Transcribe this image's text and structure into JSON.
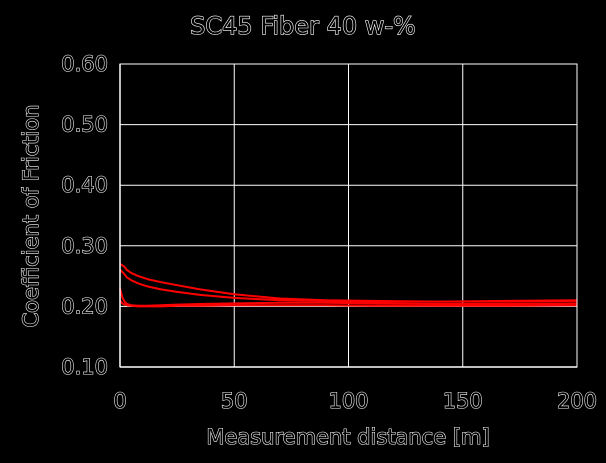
{
  "chart_data": {
    "type": "line",
    "title": "SC45 Fiber 40 w-%",
    "xlabel": "Measurement distance [m]",
    "ylabel": "Coefficient of Friction",
    "xlim": [
      0,
      200
    ],
    "ylim": [
      0.1,
      0.6
    ],
    "x_ticks": [
      "0",
      "50",
      "100",
      "150",
      "200"
    ],
    "y_ticks": [
      "0.10",
      "0.20",
      "0.30",
      "0.40",
      "0.50",
      "0.60"
    ],
    "grid": true,
    "legend": "none",
    "colors": {
      "background": "#000000",
      "plot_area": "#000000",
      "gridlines": "#ffffff",
      "series": "#ff0000"
    },
    "series": [
      {
        "x": [
          0,
          1,
          2,
          3,
          5,
          8,
          12,
          18,
          25,
          35,
          50,
          70,
          90,
          110,
          140,
          170,
          200
        ],
        "values": [
          0.27,
          0.268,
          0.265,
          0.26,
          0.255,
          0.25,
          0.245,
          0.24,
          0.235,
          0.228,
          0.22,
          0.213,
          0.21,
          0.209,
          0.208,
          0.209,
          0.21
        ]
      },
      {
        "x": [
          0,
          1,
          2,
          3,
          5,
          8,
          12,
          18,
          25,
          35,
          50,
          70,
          90,
          110,
          140,
          170,
          200
        ],
        "values": [
          0.26,
          0.257,
          0.253,
          0.248,
          0.243,
          0.238,
          0.233,
          0.228,
          0.224,
          0.219,
          0.214,
          0.21,
          0.209,
          0.208,
          0.208,
          0.208,
          0.209
        ]
      },
      {
        "x": [
          0,
          1,
          2,
          3,
          5,
          8,
          12,
          18,
          25,
          35,
          50,
          70,
          90,
          110,
          140,
          170,
          200
        ],
        "values": [
          0.23,
          0.215,
          0.208,
          0.204,
          0.202,
          0.201,
          0.201,
          0.202,
          0.203,
          0.204,
          0.205,
          0.206,
          0.206,
          0.205,
          0.204,
          0.204,
          0.205
        ]
      },
      {
        "x": [
          0,
          1,
          2,
          3,
          5,
          8,
          12,
          18,
          25,
          35,
          50,
          70,
          90,
          110,
          140,
          170,
          200
        ],
        "values": [
          0.21,
          0.205,
          0.203,
          0.202,
          0.201,
          0.2,
          0.2,
          0.2,
          0.201,
          0.201,
          0.202,
          0.202,
          0.202,
          0.201,
          0.201,
          0.201,
          0.202
        ]
      }
    ]
  }
}
